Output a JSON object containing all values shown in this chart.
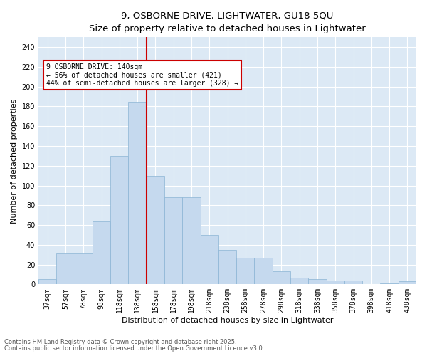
{
  "title1": "9, OSBORNE DRIVE, LIGHTWATER, GU18 5QU",
  "title2": "Size of property relative to detached houses in Lightwater",
  "xlabel": "Distribution of detached houses by size in Lightwater",
  "ylabel": "Number of detached properties",
  "bar_labels": [
    "37sqm",
    "57sqm",
    "78sqm",
    "98sqm",
    "118sqm",
    "138sqm",
    "158sqm",
    "178sqm",
    "198sqm",
    "218sqm",
    "238sqm",
    "258sqm",
    "278sqm",
    "298sqm",
    "318sqm",
    "338sqm",
    "358sqm",
    "378sqm",
    "398sqm",
    "418sqm",
    "438sqm"
  ],
  "bar_values": [
    5,
    31,
    31,
    64,
    130,
    185,
    110,
    88,
    88,
    50,
    35,
    27,
    27,
    13,
    7,
    5,
    4,
    4,
    0,
    1,
    3
  ],
  "bar_color": "#c5d9ee",
  "bar_edge_color": "#8ab4d4",
  "vline_color": "#cc0000",
  "annotation_text": "9 OSBORNE DRIVE: 140sqm\n← 56% of detached houses are smaller (421)\n44% of semi-detached houses are larger (328) →",
  "annotation_box_color": "#cc0000",
  "ylim": [
    0,
    250
  ],
  "yticks": [
    0,
    20,
    40,
    60,
    80,
    100,
    120,
    140,
    160,
    180,
    200,
    220,
    240
  ],
  "background_color": "#dce9f5",
  "footer1": "Contains HM Land Registry data © Crown copyright and database right 2025.",
  "footer2": "Contains public sector information licensed under the Open Government Licence v3.0.",
  "title1_fontsize": 9.5,
  "title2_fontsize": 8.5,
  "xlabel_fontsize": 8,
  "ylabel_fontsize": 8,
  "footer_fontsize": 6,
  "tick_fontsize": 7,
  "ann_fontsize": 7
}
